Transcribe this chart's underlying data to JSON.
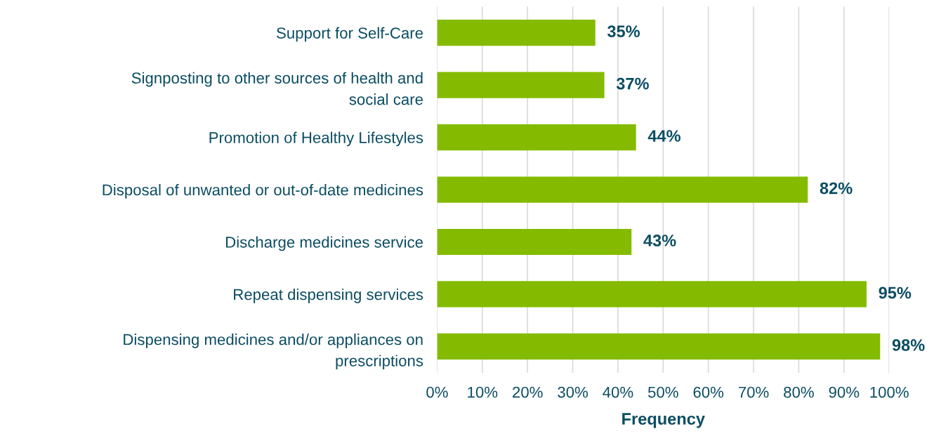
{
  "chart_data": {
    "type": "bar",
    "orientation": "horizontal",
    "xlabel": "Frequency",
    "categories": [
      "Support for Self-Care",
      "Signposting to other sources of health and social care",
      "Promotion of Healthy Lifestyles",
      "Disposal of unwanted or out-of-date medicines",
      "Discharge medicines service",
      "Repeat dispensing services",
      "Dispensing medicines and/or appliances on prescriptions"
    ],
    "values": [
      35,
      37,
      44,
      82,
      43,
      95,
      98
    ],
    "value_labels": [
      "35%",
      "37%",
      "44%",
      "82%",
      "43%",
      "95%",
      "98%"
    ],
    "color": "#84bb00",
    "xlim": [
      0,
      100
    ],
    "xticks": [
      {
        "value": 0,
        "label": "0%"
      },
      {
        "value": 10,
        "label": "10%"
      },
      {
        "value": 20,
        "label": "20%"
      },
      {
        "value": 30,
        "label": "30%"
      },
      {
        "value": 40,
        "label": "40%"
      },
      {
        "value": 50,
        "label": "50%"
      },
      {
        "value": 60,
        "label": "60%"
      },
      {
        "value": 70,
        "label": "70%"
      },
      {
        "value": 80,
        "label": "80%"
      },
      {
        "value": 90,
        "label": "90%"
      },
      {
        "value": 100,
        "label": "100%"
      }
    ],
    "grid": "x",
    "legend": false
  }
}
